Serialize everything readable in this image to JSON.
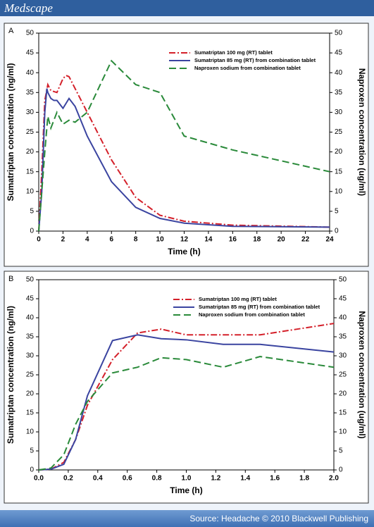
{
  "header": "Medscape",
  "footer": "Source: Headache © 2010 Blackwell Publishing",
  "chart_data": [
    {
      "type": "line",
      "panel": "A",
      "xlabel": "Time (h)",
      "ylabel": "Sumatriptan concentration (ng/ml)",
      "y2label": "Naproxen concentration (ug/ml)",
      "xlim": [
        0,
        24
      ],
      "xticks": [
        0,
        2,
        4,
        6,
        8,
        10,
        12,
        14,
        16,
        18,
        20,
        22,
        24
      ],
      "ylim": [
        0,
        50
      ],
      "yticks": [
        0,
        5,
        10,
        15,
        20,
        25,
        30,
        35,
        40,
        45,
        50
      ],
      "y2lim": [
        0,
        50
      ],
      "y2ticks": [
        0,
        5,
        10,
        15,
        20,
        25,
        30,
        35,
        40,
        45,
        50
      ],
      "legend": "upper right",
      "series": [
        {
          "name": "Sumatriptan 100 mg (RT) tablet",
          "color": "#d4202a",
          "dash": "dashdot",
          "x": [
            0,
            0.25,
            0.5,
            0.75,
            1,
            1.5,
            2,
            2.25,
            2.5,
            3,
            4,
            6,
            8,
            10,
            12,
            16,
            24
          ],
          "values": [
            0,
            15,
            33,
            37,
            35.5,
            35,
            38.5,
            39.3,
            39,
            36,
            30,
            18,
            8.5,
            4,
            2.5,
            1.5,
            1
          ]
        },
        {
          "name": "Sumatriptan 85 mg (RT) from combination tablet",
          "color": "#3a44a0",
          "dash": "solid",
          "x": [
            0,
            0.25,
            0.5,
            0.67,
            0.75,
            1,
            1.25,
            1.5,
            2,
            2.5,
            3,
            4,
            6,
            8,
            10,
            12,
            16,
            24
          ],
          "values": [
            0,
            10,
            30,
            36,
            35,
            33.5,
            33,
            33,
            31,
            33.5,
            31.5,
            24,
            12.5,
            6,
            3.2,
            2,
            1.2,
            1
          ]
        },
        {
          "name": "Naproxen sodium from combination tablet",
          "color": "#2a8a3a",
          "dash": "dashed",
          "axis": "y2",
          "x": [
            0,
            0.5,
            0.75,
            1,
            1.5,
            2,
            2.5,
            3,
            4,
            6,
            8,
            10,
            12,
            16,
            24
          ],
          "values": [
            0,
            20,
            29,
            26,
            30,
            27,
            28,
            27.5,
            30,
            43,
            37,
            35,
            24,
            20.5,
            15
          ]
        }
      ]
    },
    {
      "type": "line",
      "panel": "B",
      "xlabel": "Time (h)",
      "ylabel": "Sumatriptan concentration (ng/ml)",
      "y2label": "Naproxen concentration (ug/ml)",
      "xlim": [
        0,
        2
      ],
      "xticks": [
        {
          "value": 0,
          "label": "0.0"
        },
        0.2,
        0.4,
        0.6,
        0.8,
        {
          "value": 1,
          "label": "1.0"
        },
        1.2,
        1.4,
        1.6,
        1.8,
        {
          "value": 2,
          "label": "2.0"
        }
      ],
      "ylim": [
        0,
        50
      ],
      "yticks": [
        0,
        5,
        10,
        15,
        20,
        25,
        30,
        35,
        40,
        45,
        50
      ],
      "y2lim": [
        0,
        50
      ],
      "y2ticks": [
        0,
        5,
        10,
        15,
        20,
        25,
        30,
        35,
        40,
        45,
        50
      ],
      "legend": "upper right",
      "series": [
        {
          "name": "Sumatriptan 100 mg (RT) tablet",
          "color": "#d4202a",
          "dash": "dashdot",
          "x": [
            0,
            0.083,
            0.17,
            0.25,
            0.33,
            0.5,
            0.67,
            0.83,
            1,
            1.25,
            1.5,
            2
          ],
          "values": [
            0,
            0.2,
            2,
            8,
            17,
            29,
            36,
            37,
            35.5,
            35.5,
            35.5,
            38.5
          ]
        },
        {
          "name": "Sumatriptan 85 mg (RT) from combination tablet",
          "color": "#3a44a0",
          "dash": "solid",
          "x": [
            0,
            0.083,
            0.17,
            0.25,
            0.33,
            0.5,
            0.67,
            0.83,
            1,
            1.25,
            1.5,
            2
          ],
          "values": [
            0,
            0.2,
            1.5,
            8,
            19.5,
            34,
            35.5,
            34.5,
            34.2,
            33,
            33,
            31
          ]
        },
        {
          "name": "Naproxen sodium from combination tablet",
          "color": "#2a8a3a",
          "dash": "dashed",
          "axis": "y2",
          "x": [
            0,
            0.083,
            0.17,
            0.25,
            0.33,
            0.5,
            0.67,
            0.83,
            1,
            1.25,
            1.5,
            2
          ],
          "values": [
            0,
            0.5,
            4,
            12,
            18,
            25.5,
            27,
            29.5,
            29,
            27,
            29.8,
            27
          ]
        }
      ]
    }
  ]
}
